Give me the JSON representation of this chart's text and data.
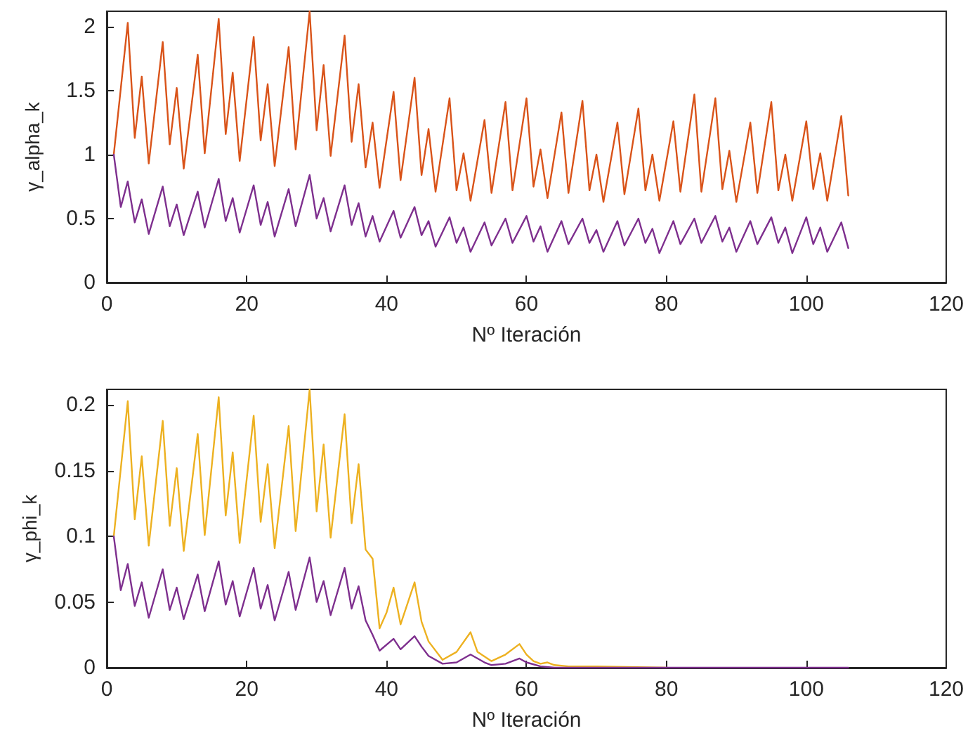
{
  "chart_data": [
    {
      "type": "line",
      "xlabel": "Nº Iteración",
      "ylabel": "γ_alpha_k",
      "xlim": [
        0,
        120
      ],
      "xticks": [
        0,
        20,
        40,
        60,
        80,
        100,
        120
      ],
      "ylim": [
        0,
        2.12
      ],
      "yticks": [
        0,
        0.5,
        1,
        1.5,
        2
      ],
      "grid": false,
      "marker": "none",
      "line_style": "solid",
      "series": [
        {
          "color": "#d95319",
          "x": [
            1,
            3,
            4,
            5,
            6,
            8,
            9,
            10,
            11,
            13,
            14,
            16,
            17,
            18,
            19,
            21,
            22,
            23,
            24,
            26,
            27,
            29,
            30,
            31,
            32,
            34,
            35,
            36,
            37,
            38,
            39,
            41,
            42,
            44,
            45,
            46,
            47,
            49,
            50,
            51,
            52,
            54,
            55,
            57,
            58,
            60,
            61,
            62,
            63,
            65,
            66,
            68,
            69,
            70,
            71,
            73,
            74,
            76,
            77,
            78,
            79,
            81,
            82,
            84,
            85,
            87,
            88,
            89,
            90,
            92,
            93,
            95,
            96,
            97,
            98,
            100,
            101,
            102,
            103,
            105,
            106
          ],
          "values": [
            1.0,
            2.03,
            1.13,
            1.61,
            0.93,
            1.88,
            1.08,
            1.52,
            0.89,
            1.78,
            1.01,
            2.06,
            1.16,
            1.64,
            0.95,
            1.92,
            1.11,
            1.55,
            0.91,
            1.84,
            1.04,
            2.12,
            1.19,
            1.7,
            0.99,
            1.93,
            1.1,
            1.55,
            0.9,
            1.25,
            0.74,
            1.49,
            0.8,
            1.6,
            0.84,
            1.2,
            0.71,
            1.44,
            0.72,
            1.01,
            0.64,
            1.27,
            0.7,
            1.41,
            0.72,
            1.44,
            0.75,
            1.04,
            0.66,
            1.33,
            0.7,
            1.42,
            0.72,
            1.0,
            0.63,
            1.25,
            0.69,
            1.36,
            0.72,
            1.0,
            0.64,
            1.26,
            0.71,
            1.47,
            0.71,
            1.44,
            0.73,
            1.03,
            0.63,
            1.25,
            0.7,
            1.41,
            0.72,
            1.0,
            0.64,
            1.26,
            0.73,
            1.01,
            0.64,
            1.3,
            0.68
          ]
        },
        {
          "color": "#7e2f8e",
          "x": [
            1,
            2,
            3,
            4,
            5,
            6,
            8,
            9,
            10,
            11,
            13,
            14,
            16,
            17,
            18,
            19,
            21,
            22,
            23,
            24,
            26,
            27,
            29,
            30,
            31,
            32,
            34,
            35,
            36,
            37,
            38,
            39,
            41,
            42,
            44,
            45,
            46,
            47,
            49,
            50,
            51,
            52,
            54,
            55,
            57,
            58,
            60,
            61,
            62,
            63,
            65,
            66,
            68,
            69,
            70,
            71,
            73,
            74,
            76,
            77,
            78,
            79,
            81,
            82,
            84,
            85,
            87,
            88,
            89,
            90,
            92,
            93,
            95,
            96,
            97,
            98,
            100,
            101,
            102,
            103,
            105,
            106
          ],
          "values": [
            1.0,
            0.59,
            0.79,
            0.47,
            0.65,
            0.38,
            0.75,
            0.44,
            0.61,
            0.37,
            0.71,
            0.43,
            0.81,
            0.48,
            0.66,
            0.39,
            0.76,
            0.45,
            0.63,
            0.36,
            0.73,
            0.44,
            0.84,
            0.5,
            0.66,
            0.4,
            0.76,
            0.45,
            0.62,
            0.36,
            0.52,
            0.32,
            0.56,
            0.35,
            0.59,
            0.37,
            0.48,
            0.28,
            0.51,
            0.31,
            0.43,
            0.24,
            0.47,
            0.29,
            0.5,
            0.31,
            0.52,
            0.32,
            0.44,
            0.24,
            0.48,
            0.3,
            0.5,
            0.31,
            0.41,
            0.24,
            0.48,
            0.29,
            0.5,
            0.31,
            0.42,
            0.23,
            0.48,
            0.3,
            0.5,
            0.31,
            0.52,
            0.32,
            0.43,
            0.24,
            0.48,
            0.3,
            0.51,
            0.31,
            0.43,
            0.23,
            0.51,
            0.3,
            0.43,
            0.24,
            0.47,
            0.27
          ]
        }
      ]
    },
    {
      "type": "line",
      "xlabel": "Nº Iteración",
      "ylabel": "γ_phi_k",
      "xlim": [
        0,
        120
      ],
      "xticks": [
        0,
        20,
        40,
        60,
        80,
        100,
        120
      ],
      "ylim": [
        0,
        0.212
      ],
      "yticks": [
        0,
        0.05,
        0.1,
        0.15,
        0.2
      ],
      "grid": false,
      "marker": "none",
      "line_style": "solid",
      "series": [
        {
          "color": "#edb120",
          "x": [
            1,
            3,
            4,
            5,
            6,
            8,
            9,
            10,
            11,
            13,
            14,
            16,
            17,
            18,
            19,
            21,
            22,
            23,
            24,
            26,
            27,
            29,
            30,
            31,
            32,
            34,
            35,
            36,
            37,
            38,
            39,
            40,
            41,
            42,
            44,
            45,
            46,
            48,
            50,
            52,
            53,
            55,
            57,
            59,
            60,
            61,
            62,
            63,
            64,
            66,
            70,
            80
          ],
          "values": [
            0.1,
            0.203,
            0.113,
            0.161,
            0.093,
            0.188,
            0.108,
            0.152,
            0.089,
            0.178,
            0.101,
            0.206,
            0.116,
            0.164,
            0.095,
            0.192,
            0.111,
            0.155,
            0.091,
            0.184,
            0.104,
            0.212,
            0.119,
            0.17,
            0.099,
            0.193,
            0.11,
            0.155,
            0.09,
            0.083,
            0.03,
            0.042,
            0.061,
            0.033,
            0.065,
            0.035,
            0.02,
            0.006,
            0.012,
            0.027,
            0.012,
            0.005,
            0.01,
            0.018,
            0.01,
            0.005,
            0.003,
            0.004,
            0.002,
            0.001,
            0.001,
            0
          ]
        },
        {
          "color": "#7e2f8e",
          "x": [
            1,
            2,
            3,
            4,
            5,
            6,
            8,
            9,
            10,
            11,
            13,
            14,
            16,
            17,
            18,
            19,
            21,
            22,
            23,
            24,
            26,
            27,
            29,
            30,
            31,
            32,
            34,
            35,
            36,
            37,
            38,
            39,
            41,
            42,
            44,
            45,
            46,
            48,
            50,
            52,
            54,
            55,
            57,
            59,
            60,
            62,
            64,
            66,
            80,
            106
          ],
          "values": [
            0.1,
            0.059,
            0.079,
            0.047,
            0.065,
            0.038,
            0.075,
            0.044,
            0.061,
            0.037,
            0.071,
            0.043,
            0.081,
            0.048,
            0.066,
            0.039,
            0.076,
            0.045,
            0.063,
            0.036,
            0.073,
            0.044,
            0.084,
            0.05,
            0.066,
            0.04,
            0.076,
            0.045,
            0.062,
            0.036,
            0.025,
            0.013,
            0.022,
            0.014,
            0.024,
            0.016,
            0.009,
            0.003,
            0.004,
            0.01,
            0.004,
            0.002,
            0.003,
            0.007,
            0.004,
            0.001,
            0,
            0,
            0,
            0
          ]
        }
      ]
    }
  ]
}
